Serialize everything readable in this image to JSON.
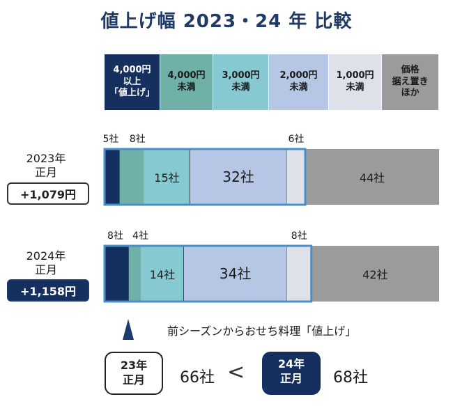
{
  "title": "値上げ幅  2023・24 年  比較",
  "legend": [
    {
      "label": "4,000円\n以上\n「値上げ」",
      "bg": "#15305e",
      "fg": "#ffffff"
    },
    {
      "label": "4,000円\n未満",
      "bg": "#6fb0a8",
      "fg": "#1a1a1a"
    },
    {
      "label": "3,000円\n未満",
      "bg": "#86c9d1",
      "fg": "#1a1a1a"
    },
    {
      "label": "2,000円\n未満",
      "bg": "#b6c7e6",
      "fg": "#1a1a1a"
    },
    {
      "label": "1,000円\n未満",
      "bg": "#dde1ea",
      "fg": "#1a1a1a"
    },
    {
      "label": "価格\n据え置き\nほか",
      "bg": "#9b9b9b",
      "fg": "#1a1a1a"
    }
  ],
  "chart_data": {
    "type": "bar",
    "orientation": "horizontal-stacked",
    "categories": [
      "4,000円以上「値上げ」",
      "4,000円未満",
      "3,000円未満",
      "2,000円未満",
      "1,000円未満",
      "価格据え置きほか"
    ],
    "series": [
      {
        "name": "2023年正月",
        "values": [
          5,
          8,
          15,
          32,
          6,
          44
        ],
        "labels": [
          "5社",
          "8社",
          "15社",
          "32社",
          "6社",
          "44社"
        ]
      },
      {
        "name": "2024年正月",
        "values": [
          8,
          4,
          14,
          34,
          8,
          42
        ],
        "labels": [
          "8社",
          "4社",
          "14社",
          "34社",
          "8社",
          "42社"
        ]
      }
    ],
    "colors": [
      "#15305e",
      "#6fb0a8",
      "#86c9d1",
      "#b6c7e6",
      "#dde1ea",
      "#9b9b9b"
    ],
    "highlight_border": "#4a8fc8"
  },
  "rows": {
    "r2023": {
      "label": "2023年\n正月",
      "delta": "+1,079円"
    },
    "r2024": {
      "label": "2024年\n正月",
      "delta": "+1,158円"
    }
  },
  "note": "前シーズンからおせち料理「値上げ」",
  "comparison": {
    "prev_label": "23年\n正月",
    "prev_count": "66社",
    "curr_label": "24年\n正月",
    "curr_count": "68社",
    "arrow": "<"
  }
}
